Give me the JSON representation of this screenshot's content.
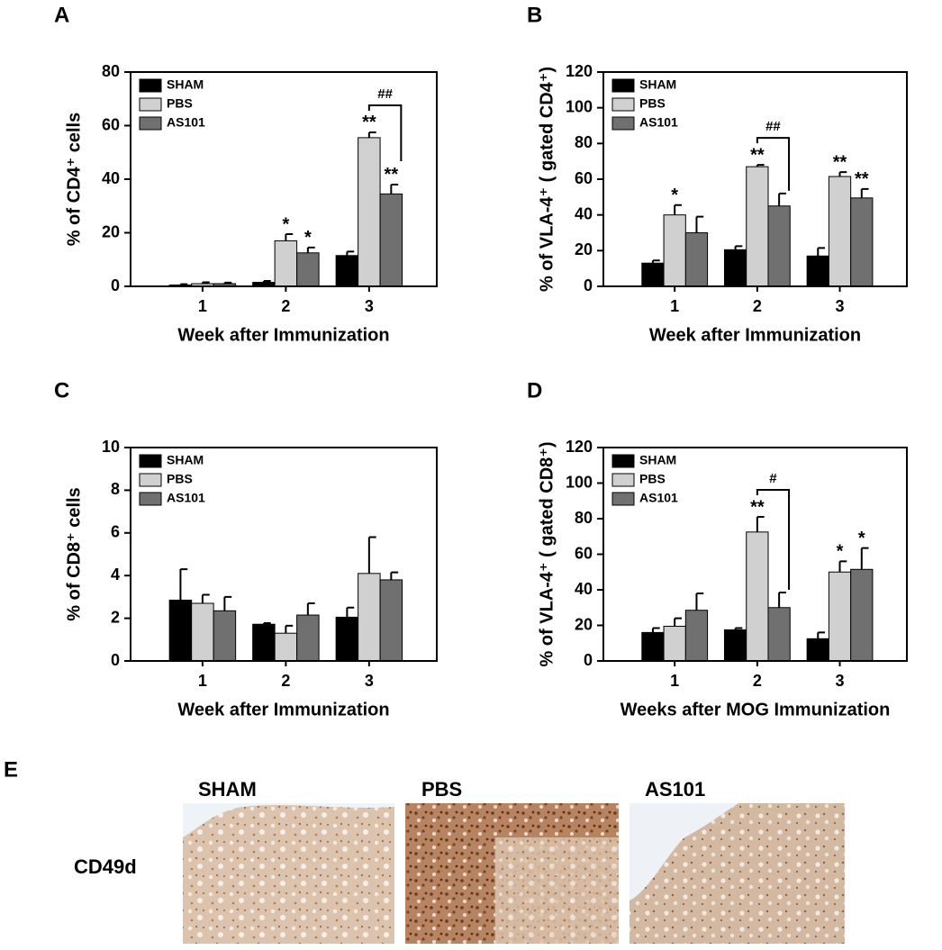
{
  "chart_data": [
    {
      "type": "bar",
      "panel": "A",
      "ylabel": "% of CD4⁺ cells",
      "xlabel": "Week after Immunization",
      "categories": [
        "1",
        "2",
        "3"
      ],
      "ylim": [
        0,
        80
      ],
      "yticks": [
        0,
        20,
        40,
        60,
        80
      ],
      "series": [
        {
          "name": "SHAM",
          "color": "#000000",
          "values": [
            0.5,
            1.5,
            11.5
          ],
          "errors": [
            0.3,
            0.5,
            1.5
          ],
          "significance": [
            null,
            null,
            null
          ]
        },
        {
          "name": "PBS",
          "color": "#d0d0d0",
          "values": [
            1,
            17,
            55.5
          ],
          "errors": [
            0.5,
            2.5,
            2
          ],
          "significance": [
            null,
            "*",
            "**"
          ]
        },
        {
          "name": "AS101",
          "color": "#707070",
          "values": [
            1,
            12.5,
            34.5
          ],
          "errors": [
            0.4,
            2,
            3.5
          ],
          "significance": [
            null,
            "*",
            "**"
          ]
        }
      ],
      "comparisons": [
        {
          "category": "3",
          "label": "##"
        }
      ]
    },
    {
      "type": "bar",
      "panel": "B",
      "ylabel": "% of VLA-4⁺ ( gated CD4⁺)",
      "xlabel": "Week after Immunization",
      "categories": [
        "1",
        "2",
        "3"
      ],
      "ylim": [
        0,
        120
      ],
      "yticks": [
        0,
        20,
        40,
        60,
        80,
        100,
        120
      ],
      "series": [
        {
          "name": "SHAM",
          "color": "#000000",
          "values": [
            13,
            20.5,
            17
          ],
          "errors": [
            1.5,
            2,
            4.5
          ],
          "significance": [
            null,
            null,
            null
          ]
        },
        {
          "name": "PBS",
          "color": "#d0d0d0",
          "values": [
            40,
            67,
            61.5
          ],
          "errors": [
            5.5,
            1,
            2.5
          ],
          "significance": [
            "*",
            "**",
            "**"
          ]
        },
        {
          "name": "AS101",
          "color": "#707070",
          "values": [
            30,
            45,
            49.5
          ],
          "errors": [
            9,
            7,
            5
          ],
          "significance": [
            null,
            null,
            "**"
          ]
        }
      ],
      "comparisons": [
        {
          "category": "2",
          "label": "##"
        }
      ]
    },
    {
      "type": "bar",
      "panel": "C",
      "ylabel": "% of CD8⁺ cells",
      "xlabel": "Week after Immunization",
      "categories": [
        "1",
        "2",
        "3"
      ],
      "ylim": [
        0,
        10
      ],
      "yticks": [
        0,
        2,
        4,
        6,
        8,
        10
      ],
      "series": [
        {
          "name": "SHAM",
          "color": "#000000",
          "values": [
            2.85,
            1.72,
            2.05
          ],
          "errors": [
            1.45,
            0.05,
            0.45
          ],
          "significance": [
            null,
            null,
            null
          ]
        },
        {
          "name": "PBS",
          "color": "#d0d0d0",
          "values": [
            2.7,
            1.3,
            4.1
          ],
          "errors": [
            0.4,
            0.35,
            1.7
          ],
          "significance": [
            null,
            null,
            null
          ]
        },
        {
          "name": "AS101",
          "color": "#707070",
          "values": [
            2.35,
            2.15,
            3.8
          ],
          "errors": [
            0.65,
            0.55,
            0.35
          ],
          "significance": [
            null,
            null,
            null
          ]
        }
      ],
      "comparisons": []
    },
    {
      "type": "bar",
      "panel": "D",
      "ylabel": "% of VLA-4⁺ ( gated CD8⁺)",
      "xlabel": "Weeks after MOG Immunization",
      "categories": [
        "1",
        "2",
        "3"
      ],
      "ylim": [
        0,
        120
      ],
      "yticks": [
        0,
        20,
        40,
        60,
        80,
        100,
        120
      ],
      "series": [
        {
          "name": "SHAM",
          "color": "#000000",
          "values": [
            16,
            17.5,
            12.5
          ],
          "errors": [
            2.5,
            1,
            3.5
          ],
          "significance": [
            null,
            null,
            null
          ]
        },
        {
          "name": "PBS",
          "color": "#d0d0d0",
          "values": [
            19.5,
            72.5,
            50
          ],
          "errors": [
            4.5,
            8.5,
            6
          ],
          "significance": [
            null,
            "**",
            "*"
          ]
        },
        {
          "name": "AS101",
          "color": "#707070",
          "values": [
            28.5,
            30,
            51.5
          ],
          "errors": [
            9.5,
            8.5,
            12
          ],
          "significance": [
            null,
            null,
            "*"
          ]
        }
      ],
      "comparisons": [
        {
          "category": "2",
          "label": "#"
        }
      ]
    }
  ],
  "panel_e": {
    "panel": "E",
    "row_label": "CD49d",
    "columns": [
      "SHAM",
      "PBS",
      "AS101"
    ]
  }
}
